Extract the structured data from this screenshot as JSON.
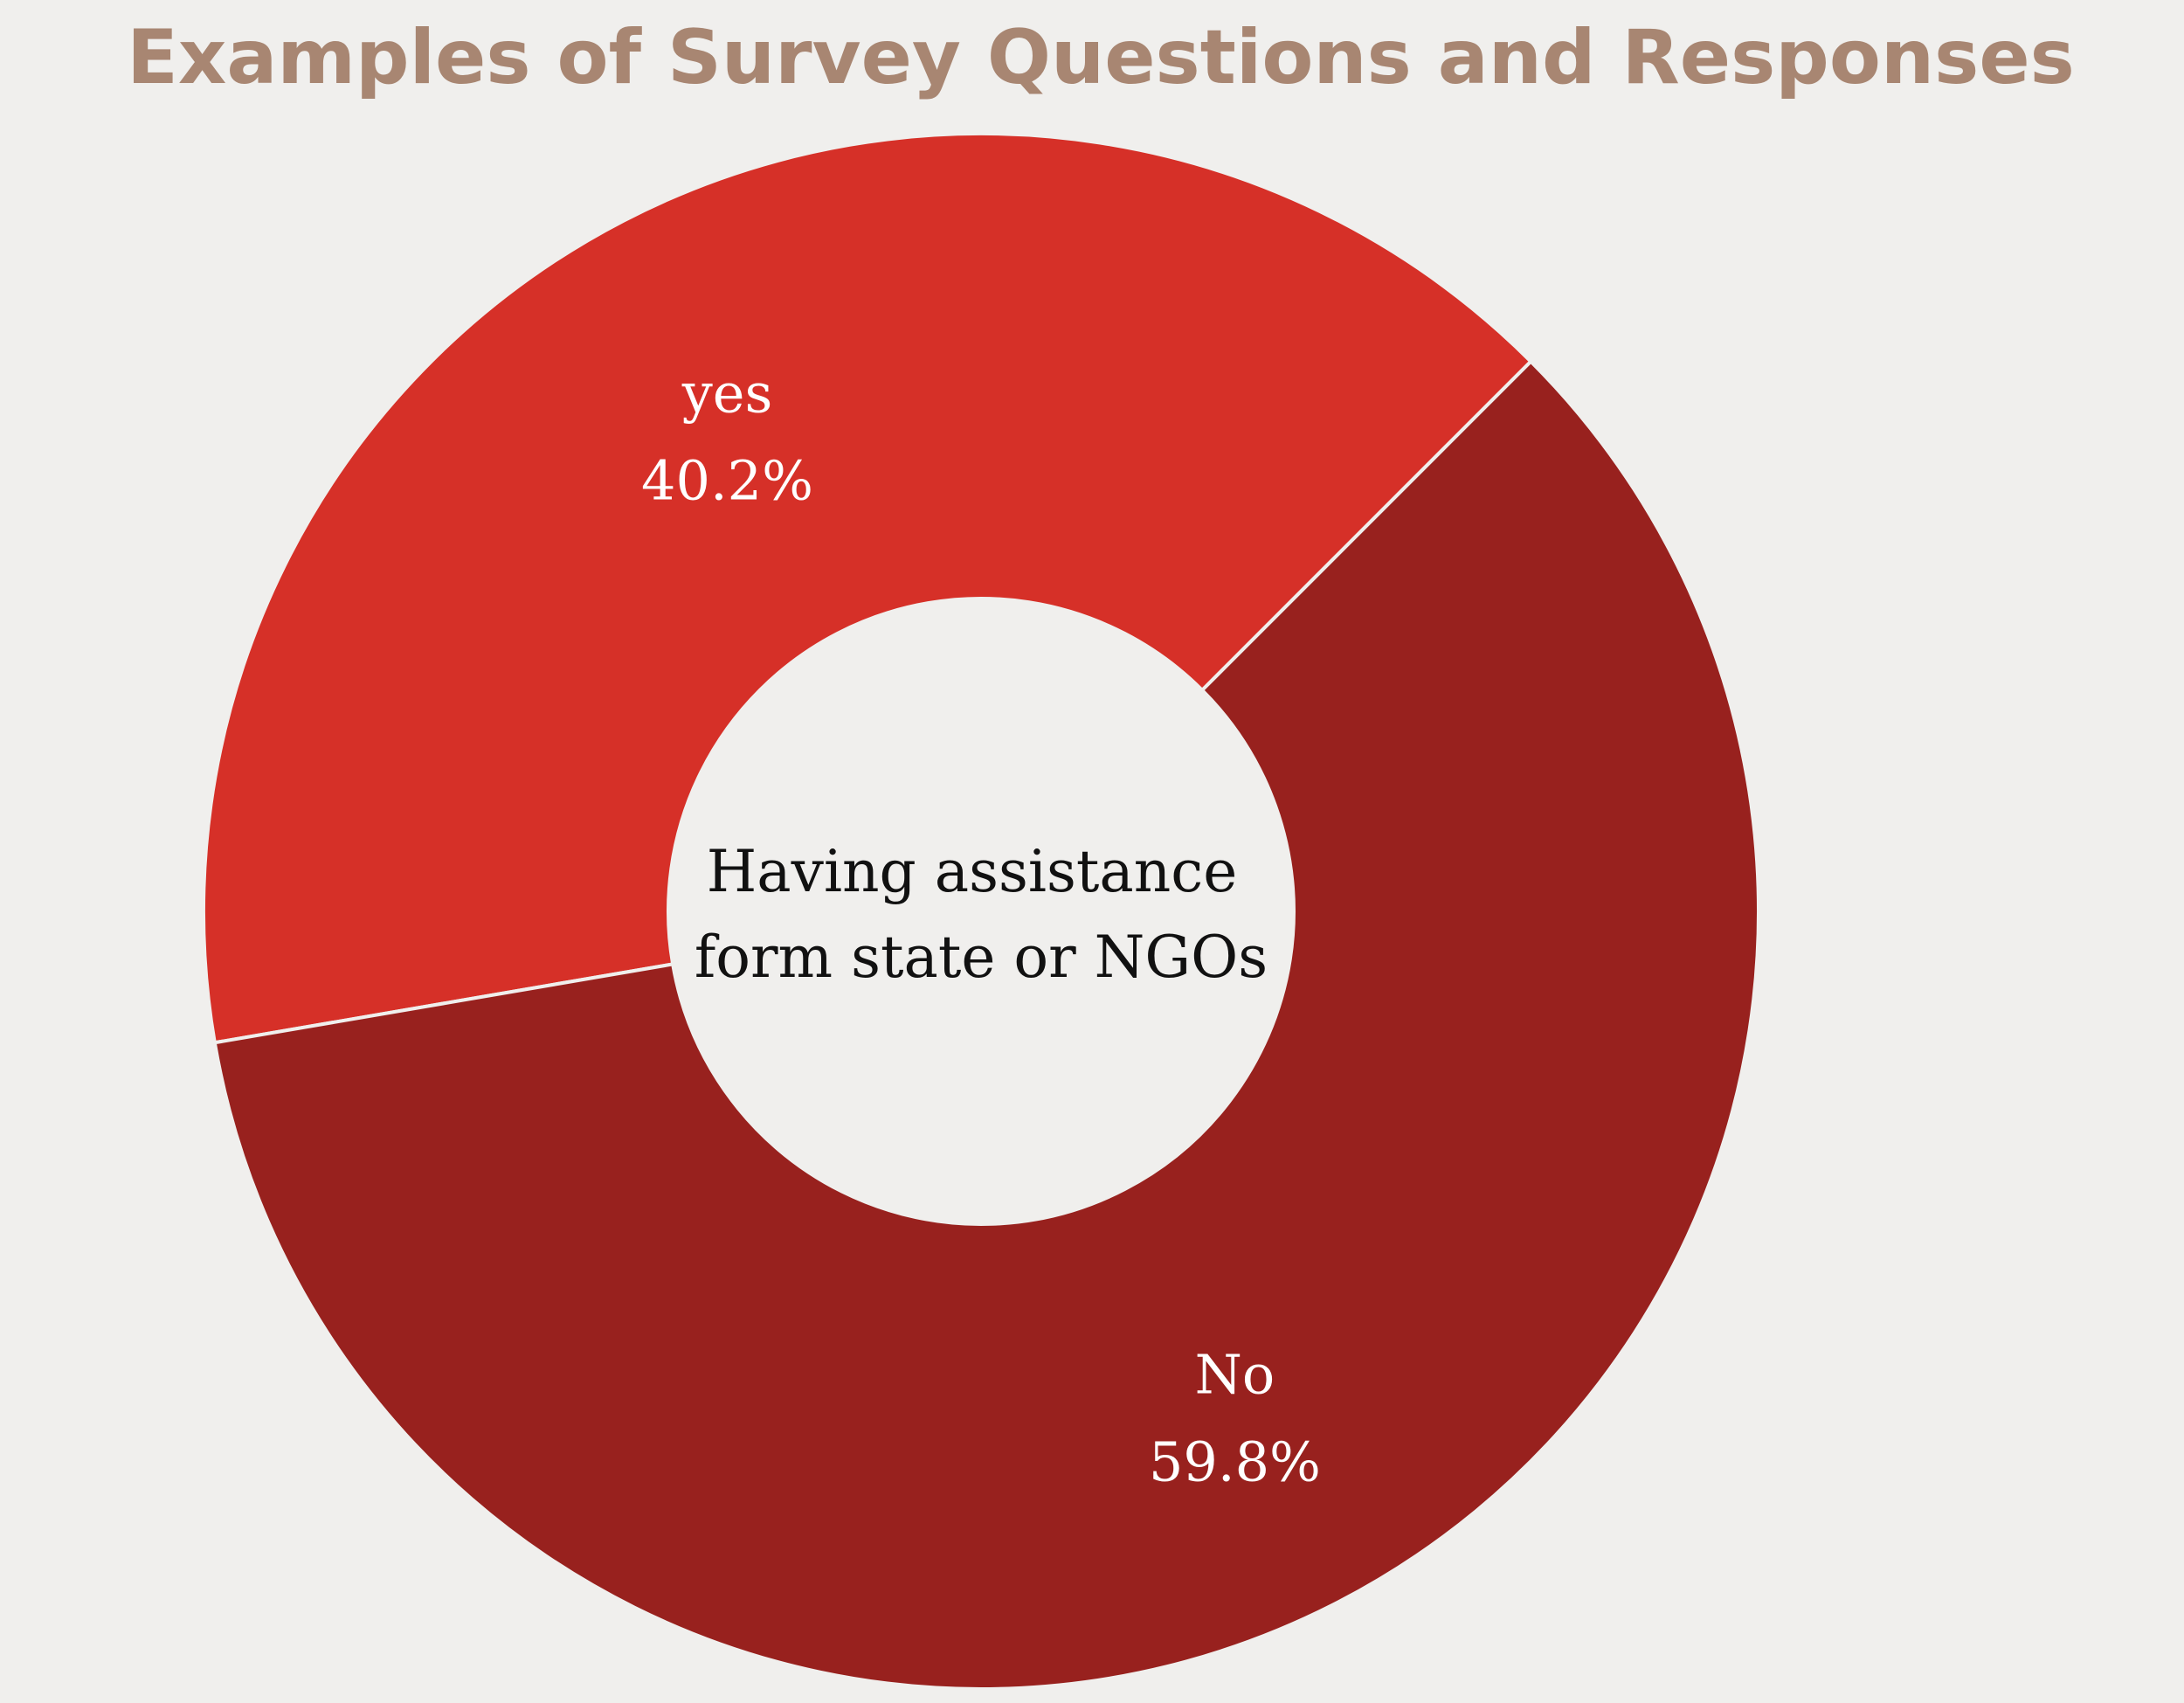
{
  "colors": {
    "background": "#f0efed",
    "title": "#a88672",
    "slice_separator": "#f0efed"
  },
  "chart_data": {
    "type": "pie",
    "title": "Examples of Survey Questions and Responses",
    "center_label": [
      "Having assistance",
      "form state or NGOs"
    ],
    "slices": [
      {
        "label": "yes",
        "value": 40.2,
        "value_label": "40.2%",
        "color": "#d63028"
      },
      {
        "label": "No",
        "value": 59.8,
        "value_label": "59.8%",
        "color": "#98211e"
      }
    ],
    "legend": "none"
  }
}
